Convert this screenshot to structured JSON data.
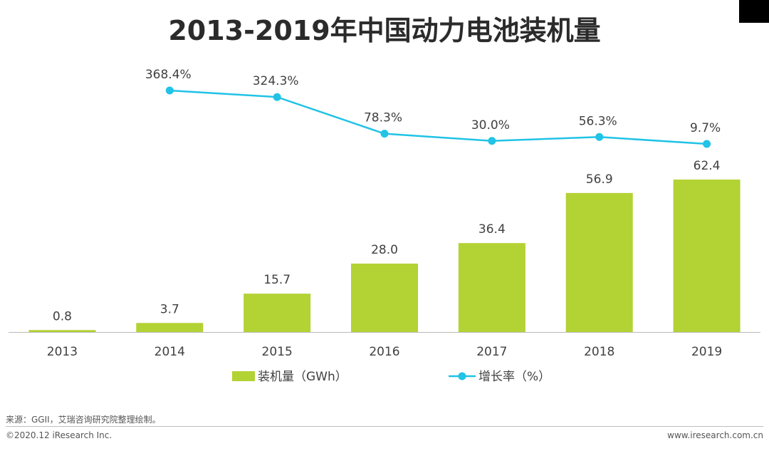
{
  "title": "2013-2019年中国动力电池装机量",
  "colors": {
    "bar": "#B3D234",
    "line": "#21C3E6",
    "axis": "#BBBBBB",
    "text": "#404040"
  },
  "chart_data": {
    "type": "bar+line",
    "title": "2013-2019年中国动力电池装机量",
    "categories": [
      "2013",
      "2014",
      "2015",
      "2016",
      "2017",
      "2018",
      "2019"
    ],
    "series": [
      {
        "name": "装机量（GWh）",
        "type": "bar",
        "values": [
          0.8,
          3.7,
          15.7,
          28.0,
          36.4,
          56.9,
          62.4
        ],
        "labels": [
          "0.8",
          "3.7",
          "15.7",
          "28.0",
          "36.4",
          "56.9",
          "62.4"
        ],
        "ylim": [
          0,
          70
        ]
      },
      {
        "name": "增长率（%）",
        "type": "line",
        "values": [
          null,
          368.4,
          324.3,
          78.3,
          30.0,
          56.3,
          9.7
        ],
        "labels": [
          "",
          "368.4%",
          "324.3%",
          "78.3%",
          "30.0%",
          "56.3%",
          "9.7%"
        ]
      }
    ],
    "legend": [
      "装机量（GWh）",
      "增长率（%）"
    ],
    "legend_position": "bottom",
    "grid": false
  },
  "footer": {
    "source": "来源：GGII，艾瑞咨询研究院整理绘制。",
    "copyright": "©2020.12 iResearch Inc.",
    "website": "www.iresearch.com.cn"
  }
}
